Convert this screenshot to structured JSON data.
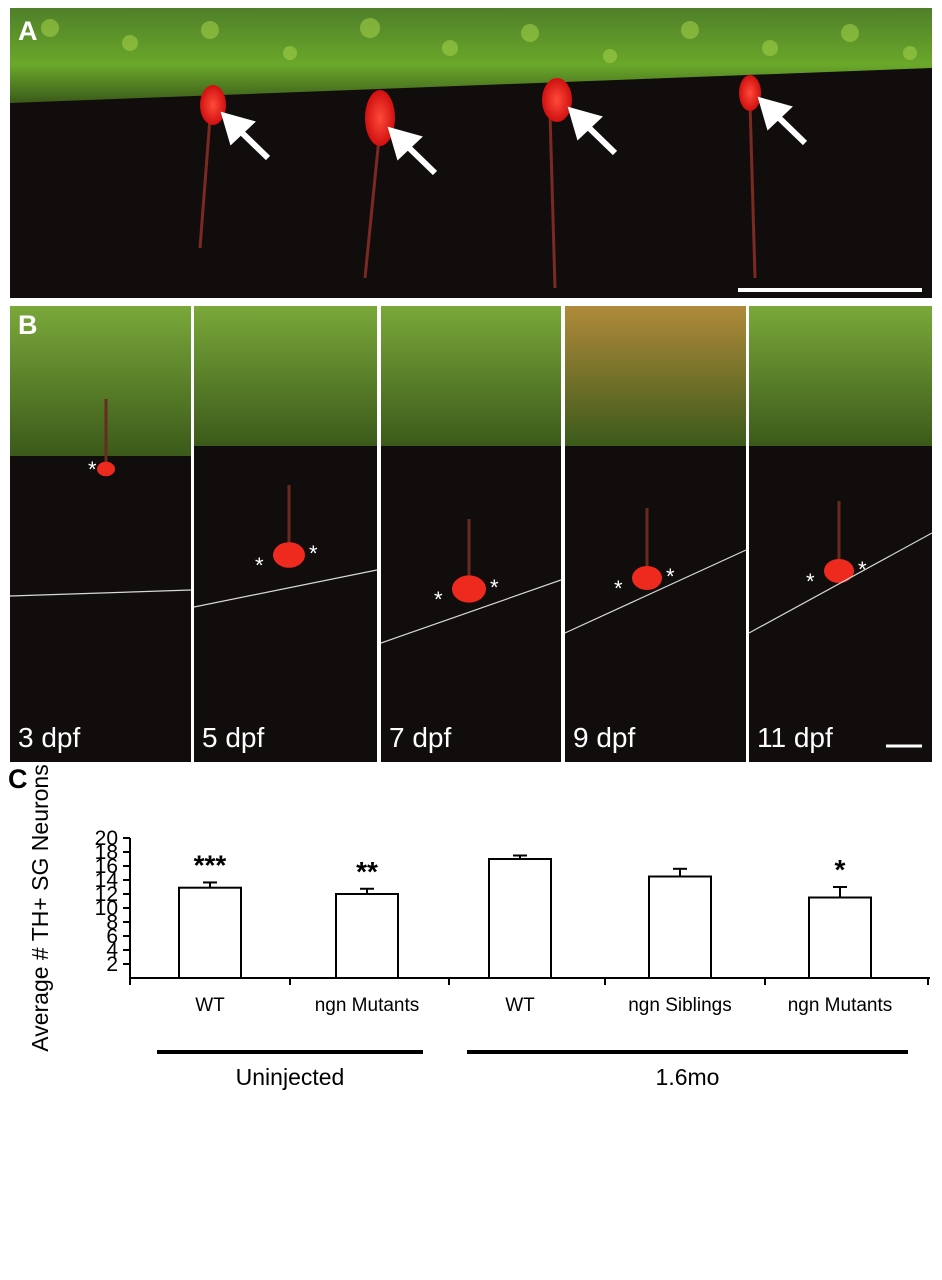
{
  "panelA": {
    "label": "A",
    "colors": {
      "tissue": "#6aa82a",
      "neuron": "#ff2020",
      "arrow": "#ffffff"
    }
  },
  "panelB": {
    "label": "B",
    "timepoints": [
      {
        "label": "3 dpf"
      },
      {
        "label": "5 dpf"
      },
      {
        "label": "7 dpf"
      },
      {
        "label": "9 dpf"
      },
      {
        "label": "11 dpf"
      }
    ]
  },
  "panelC": {
    "label": "C"
  },
  "chart_data": {
    "type": "bar",
    "ylabel": "Average # TH+ SG Neurons",
    "ylim": [
      0,
      20
    ],
    "yticks": [
      2,
      4,
      6,
      8,
      10,
      12,
      14,
      16,
      18,
      20
    ],
    "categories": [
      "WT",
      "ngn Mutants",
      "WT",
      "ngn Siblings",
      "ngn Mutants"
    ],
    "values": [
      12.9,
      12.0,
      17.0,
      14.5,
      11.5
    ],
    "errors": [
      0.75,
      0.75,
      0.5,
      1.1,
      1.5
    ],
    "significance": [
      "***",
      "**",
      "",
      "",
      "*"
    ],
    "groups": [
      {
        "label": "Uninjected",
        "members": [
          0,
          1
        ]
      },
      {
        "label": "1.6mo",
        "members": [
          2,
          3,
          4
        ]
      }
    ],
    "grid": false,
    "bar_fill": "#ffffff",
    "bar_stroke": "#000000"
  }
}
